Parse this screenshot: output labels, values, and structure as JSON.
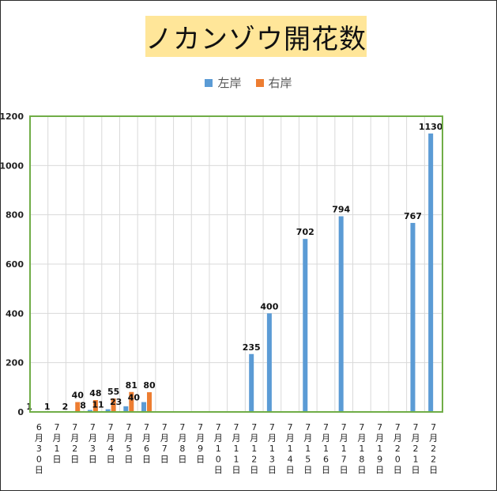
{
  "chart_data": {
    "type": "bar",
    "title": "ノカンゾウ開花数",
    "categories": [
      "6月30日",
      "7月1日",
      "7月2日",
      "7月3日",
      "7月4日",
      "7月5日",
      "7月6日",
      "7月7日",
      "7月8日",
      "7月9日",
      "7月10日",
      "7月11日",
      "7月12日",
      "7月13日",
      "7月14日",
      "7月15日",
      "7月16日",
      "7月17日",
      "7月18日",
      "7月19日",
      "7月20日",
      "7月21日",
      "7月22日"
    ],
    "series": [
      {
        "name": "左岸",
        "color": "#5b9bd5",
        "values": [
          1,
          1,
          2,
          8,
          11,
          23,
          40,
          null,
          null,
          null,
          null,
          null,
          235,
          400,
          null,
          702,
          null,
          794,
          null,
          null,
          null,
          767,
          1130
        ]
      },
      {
        "name": "右岸",
        "color": "#ed7d31",
        "values": [
          null,
          null,
          40,
          48,
          55,
          81,
          80,
          null,
          null,
          null,
          null,
          null,
          null,
          null,
          null,
          null,
          null,
          null,
          null,
          null,
          null,
          null,
          null
        ]
      }
    ],
    "yticks": [
      0,
      200,
      400,
      600,
      800,
      1000,
      1200
    ],
    "ylim": [
      0,
      1200
    ],
    "xlabel": "",
    "ylabel": "",
    "grid": true,
    "legend_position": "top-center",
    "plot_border_color": "#70ad47"
  }
}
